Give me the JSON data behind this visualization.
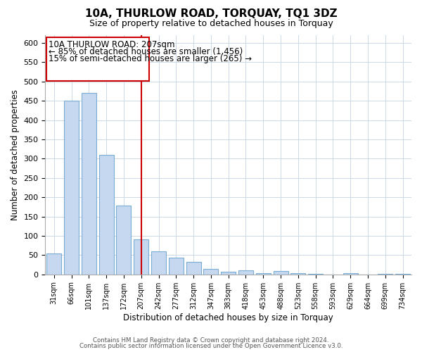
{
  "title": "10A, THURLOW ROAD, TORQUAY, TQ1 3DZ",
  "subtitle": "Size of property relative to detached houses in Torquay",
  "xlabel": "Distribution of detached houses by size in Torquay",
  "ylabel": "Number of detached properties",
  "bar_labels": [
    "31sqm",
    "66sqm",
    "101sqm",
    "137sqm",
    "172sqm",
    "207sqm",
    "242sqm",
    "277sqm",
    "312sqm",
    "347sqm",
    "383sqm",
    "418sqm",
    "453sqm",
    "488sqm",
    "523sqm",
    "558sqm",
    "593sqm",
    "629sqm",
    "664sqm",
    "699sqm",
    "734sqm"
  ],
  "bar_heights": [
    55,
    450,
    470,
    310,
    178,
    90,
    60,
    43,
    32,
    15,
    7,
    10,
    4,
    9,
    4,
    1,
    0,
    3,
    0,
    1,
    2
  ],
  "bar_color": "#c5d8ef",
  "bar_edge_color": "#7aadd4",
  "vline_index": 5,
  "vline_color": "#cc0000",
  "ylim": [
    0,
    620
  ],
  "yticks": [
    0,
    50,
    100,
    150,
    200,
    250,
    300,
    350,
    400,
    450,
    500,
    550,
    600
  ],
  "annotation_title": "10A THURLOW ROAD: 207sqm",
  "annotation_line1": "← 85% of detached houses are smaller (1,456)",
  "annotation_line2": "15% of semi-detached houses are larger (265) →",
  "footer_line1": "Contains HM Land Registry data © Crown copyright and database right 2024.",
  "footer_line2": "Contains public sector information licensed under the Open Government Licence v3.0.",
  "background_color": "#ffffff",
  "grid_color": "#cdd8e8",
  "annotation_box_color": "#cc0000",
  "title_fontsize": 11,
  "subtitle_fontsize": 9
}
